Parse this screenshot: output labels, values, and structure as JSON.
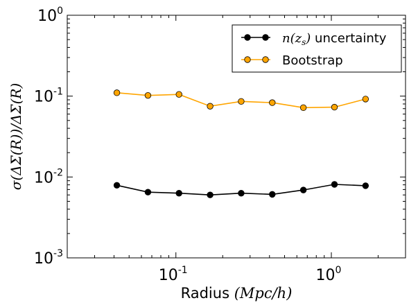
{
  "chart_data": {
    "type": "line",
    "xscale": "log",
    "yscale": "log",
    "xlim": [
      0.02,
      3.0
    ],
    "ylim": [
      0.001,
      1.0
    ],
    "xlabel": {
      "text": "Radius",
      "math": "(Mpc/h)"
    },
    "ylabel": "σ(ΔΣ(R))/ΔΣ(R)",
    "x_ticks": [
      {
        "value": 0.1,
        "base": "10",
        "exp": "-1"
      },
      {
        "value": 1.0,
        "base": "10",
        "exp": "0"
      }
    ],
    "y_ticks": [
      {
        "value": 0.001,
        "base": "10",
        "exp": "-3"
      },
      {
        "value": 0.01,
        "base": "10",
        "exp": "-2"
      },
      {
        "value": 0.1,
        "base": "10",
        "exp": "-1"
      },
      {
        "value": 1.0,
        "base": "10",
        "exp": "0"
      }
    ],
    "legend_position": "top-right",
    "grid": false,
    "series": [
      {
        "name": "n(z_s) uncertainty",
        "legend_math": "n(z",
        "legend_sub": "s",
        "legend_tail": ")",
        "legend_text": "uncertainty",
        "color": "#000000",
        "marker_fill": "#000000",
        "x": [
          0.0417,
          0.0661,
          0.1047,
          0.166,
          0.263,
          0.4168,
          0.6607,
          1.0471,
          1.6596
        ],
        "y": [
          0.0079,
          0.0065,
          0.0063,
          0.006,
          0.0063,
          0.0061,
          0.0069,
          0.0081,
          0.0078
        ]
      },
      {
        "name": "Bootstrap",
        "legend_text": "Bootstrap",
        "color": "#FFA500",
        "marker_fill": "#FFA500",
        "x": [
          0.0417,
          0.0661,
          0.1047,
          0.166,
          0.263,
          0.4168,
          0.6607,
          1.0471,
          1.6596
        ],
        "y": [
          0.11,
          0.102,
          0.105,
          0.075,
          0.086,
          0.083,
          0.072,
          0.073,
          0.092
        ]
      }
    ]
  }
}
